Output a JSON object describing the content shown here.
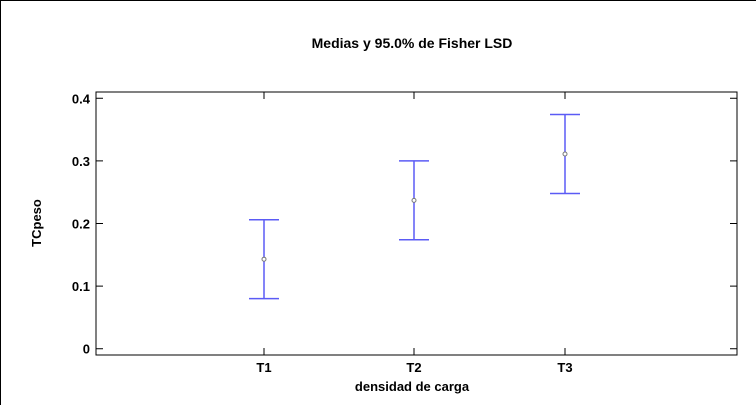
{
  "chart_data": {
    "type": "errorbar",
    "title": "Medias y 95.0%  de Fisher LSD",
    "xlabel": "densidad de carga",
    "ylabel": "TCpeso",
    "categories": [
      "T1",
      "T2",
      "T3"
    ],
    "means": [
      0.143,
      0.237,
      0.311
    ],
    "lower": [
      0.08,
      0.174,
      0.248
    ],
    "upper": [
      0.206,
      0.3,
      0.374
    ],
    "ylim": [
      -0.01,
      0.41
    ],
    "yticks": [
      0,
      0.1,
      0.2,
      0.3,
      0.4
    ],
    "ytick_labels": [
      "0",
      "0.1",
      "0.2",
      "0.3",
      "0.4"
    ],
    "grid": false,
    "colors": {
      "interval": "#5b5bf5",
      "mean": "#777777",
      "axis": "#000000"
    }
  }
}
